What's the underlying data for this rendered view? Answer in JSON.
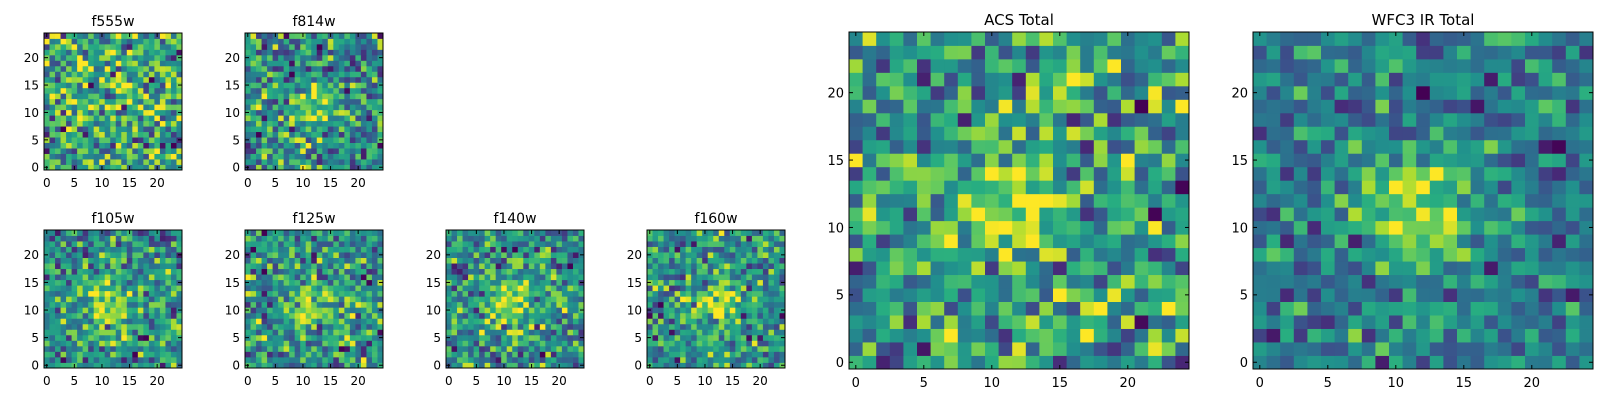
{
  "figure": {
    "background": "#ffffff",
    "colormap": "viridis",
    "colors": {
      "low": "#440154",
      "high": "#fde725"
    }
  },
  "chart_data": [
    {
      "type": "heatmap",
      "title": "f555w",
      "xlabel": "",
      "ylabel": "",
      "grid_size": 25,
      "xlim": [
        0,
        24
      ],
      "ylim": [
        0,
        24
      ],
      "xticks": [
        0,
        5,
        10,
        15,
        20
      ],
      "yticks": [
        0,
        5,
        10,
        15,
        20
      ],
      "grid": false,
      "pattern": {
        "peak_center": [
          12,
          11
        ],
        "peak_width": 3.5,
        "peak_amplitude": 0.1,
        "noise": 0.55,
        "seed": 11,
        "base": 0.6
      }
    },
    {
      "type": "heatmap",
      "title": "f814w",
      "xlabel": "",
      "ylabel": "",
      "grid_size": 25,
      "xlim": [
        0,
        24
      ],
      "ylim": [
        0,
        24
      ],
      "xticks": [
        0,
        5,
        10,
        15,
        20
      ],
      "yticks": [
        0,
        5,
        10,
        15,
        20
      ],
      "grid": false,
      "pattern": {
        "peak_center": [
          12,
          11
        ],
        "peak_width": 2.5,
        "peak_amplitude": 0.35,
        "noise": 0.5,
        "seed": 23,
        "base": 0.5
      }
    },
    {
      "type": "heatmap",
      "title": "f105w",
      "xlabel": "",
      "ylabel": "",
      "grid_size": 25,
      "xlim": [
        0,
        24
      ],
      "ylim": [
        0,
        24
      ],
      "xticks": [
        0,
        5,
        10,
        15,
        20
      ],
      "yticks": [
        0,
        5,
        10,
        15,
        20
      ],
      "grid": false,
      "pattern": {
        "peak_center": [
          11,
          11
        ],
        "peak_width": 3.5,
        "peak_amplitude": 0.35,
        "noise": 0.45,
        "seed": 37,
        "base": 0.5
      }
    },
    {
      "type": "heatmap",
      "title": "f125w",
      "xlabel": "",
      "ylabel": "",
      "grid_size": 25,
      "xlim": [
        0,
        24
      ],
      "ylim": [
        0,
        24
      ],
      "xticks": [
        0,
        5,
        10,
        15,
        20
      ],
      "yticks": [
        0,
        5,
        10,
        15,
        20
      ],
      "grid": false,
      "pattern": {
        "peak_center": [
          12,
          11
        ],
        "peak_width": 3.0,
        "peak_amplitude": 0.35,
        "noise": 0.5,
        "seed": 41,
        "base": 0.5
      }
    },
    {
      "type": "heatmap",
      "title": "f140w",
      "xlabel": "",
      "ylabel": "",
      "grid_size": 25,
      "xlim": [
        0,
        24
      ],
      "ylim": [
        0,
        24
      ],
      "xticks": [
        0,
        5,
        10,
        15,
        20
      ],
      "yticks": [
        0,
        5,
        10,
        15,
        20
      ],
      "grid": false,
      "pattern": {
        "peak_center": [
          11,
          11
        ],
        "peak_width": 3.0,
        "peak_amplitude": 0.4,
        "noise": 0.45,
        "seed": 53,
        "base": 0.5
      }
    },
    {
      "type": "heatmap",
      "title": "f160w",
      "xlabel": "",
      "ylabel": "",
      "grid_size": 25,
      "xlim": [
        0,
        24
      ],
      "ylim": [
        0,
        24
      ],
      "xticks": [
        0,
        5,
        10,
        15,
        20
      ],
      "yticks": [
        0,
        5,
        10,
        15,
        20
      ],
      "grid": false,
      "pattern": {
        "peak_center": [
          12,
          11
        ],
        "peak_width": 3.0,
        "peak_amplitude": 0.4,
        "noise": 0.45,
        "seed": 67,
        "base": 0.5
      }
    },
    {
      "type": "heatmap",
      "title": "ACS Total",
      "xlabel": "",
      "ylabel": "",
      "grid_size": 25,
      "xlim": [
        0,
        24
      ],
      "ylim": [
        0,
        24
      ],
      "xticks": [
        0,
        5,
        10,
        15,
        20
      ],
      "yticks": [
        0,
        5,
        10,
        15,
        20
      ],
      "grid": false,
      "pattern": {
        "peak_center": [
          11.5,
          11.5
        ],
        "peak_width": 2.5,
        "peak_amplitude": 0.4,
        "noise": 0.5,
        "seed": 79,
        "base": 0.55
      }
    },
    {
      "type": "heatmap",
      "title": "WFC3 IR Total",
      "xlabel": "",
      "ylabel": "",
      "grid_size": 25,
      "xlim": [
        0,
        24
      ],
      "ylim": [
        0,
        24
      ],
      "xticks": [
        0,
        5,
        10,
        15,
        20
      ],
      "yticks": [
        0,
        5,
        10,
        15,
        20
      ],
      "grid": false,
      "pattern": {
        "peak_center": [
          11.5,
          11
        ],
        "peak_width": 3.0,
        "peak_amplitude": 0.5,
        "noise": 0.35,
        "seed": 97,
        "base": 0.42
      }
    }
  ]
}
